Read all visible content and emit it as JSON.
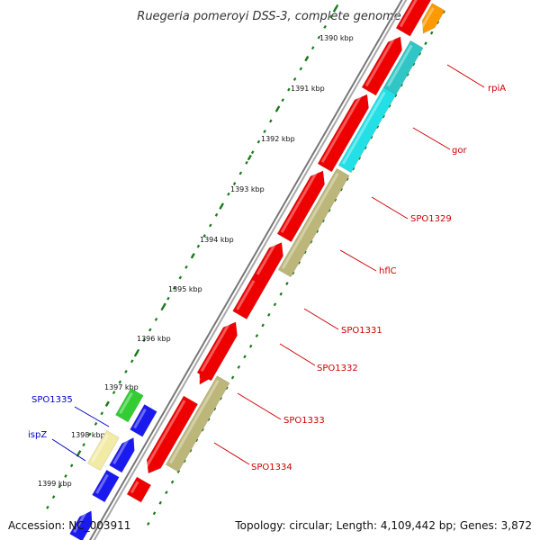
{
  "title": "Ruegeria pomeroyi DSS-3, complete genome",
  "footer": {
    "accession": "Accession: NC_003911",
    "summary": "Topology: circular; Length: 4,109,442 bp; Genes: 3,872"
  },
  "ticks": [
    "1390 kbp",
    "1391 kbp",
    "1392 kbp",
    "1393 kbp",
    "1394 kbp",
    "1395 kbp",
    "1396 kbp",
    "1397 kbp",
    "1398 kbp",
    "1399 kbp"
  ],
  "gene_labels_forward": [
    "rpiA",
    "gor",
    "SPO1329",
    "hflC",
    "SPO1331",
    "SPO1332",
    "SPO1333",
    "SPO1334"
  ],
  "gene_labels_reverse": [
    "SPO1335",
    "ispZ"
  ],
  "colors": {
    "forward_label": "#cc0000",
    "reverse_label": "#0000cc",
    "cds_red": "#ee0000",
    "cyan": "#22e0e6",
    "teal": "#30c6c6",
    "olive": "#bcb67a",
    "green": "#33cc33",
    "pale_yellow": "#f2eba6",
    "blue": "#1a1aee",
    "orange": "#ff9900",
    "backbone": "#888888",
    "tick_green": "#1a7a1a"
  }
}
